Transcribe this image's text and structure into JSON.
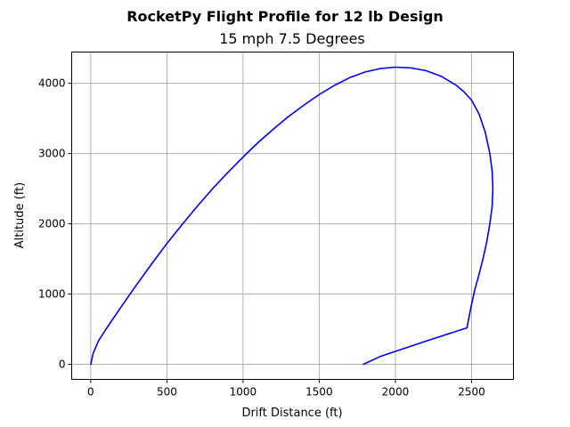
{
  "chart_data": {
    "type": "line",
    "title": "RocketPy Flight Profile for 12 lb Design",
    "subtitle": "15 mph 7.5 Degrees",
    "xlabel": "Drift Distance (ft)",
    "ylabel": "Altitude (ft)",
    "xlim": [
      -125,
      2775
    ],
    "ylim": [
      -215,
      4445
    ],
    "xticks": [
      0,
      500,
      1000,
      1500,
      2000,
      2500
    ],
    "yticks": [
      0,
      1000,
      2000,
      3000,
      4000
    ],
    "grid": true,
    "line_color": "#0000ee",
    "series": [
      {
        "x": [
          0,
          15,
          50,
          100,
          200,
          300,
          400,
          500,
          600,
          700,
          800,
          900,
          1000,
          1100,
          1200,
          1300,
          1400,
          1500,
          1600,
          1700,
          1800,
          1900,
          2000,
          2100,
          2200,
          2300,
          2400,
          2450,
          2500,
          2550,
          2590,
          2620,
          2635,
          2640,
          2635,
          2620,
          2600,
          2575,
          2545,
          2520,
          2505,
          2490,
          2470,
          2200,
          1900,
          1790
        ],
        "y": [
          0,
          150,
          330,
          500,
          820,
          1130,
          1430,
          1720,
          1990,
          2250,
          2500,
          2730,
          2950,
          3160,
          3350,
          3530,
          3690,
          3840,
          3970,
          4080,
          4160,
          4210,
          4230,
          4220,
          4180,
          4100,
          3970,
          3880,
          3760,
          3560,
          3300,
          3000,
          2750,
          2500,
          2250,
          2000,
          1750,
          1500,
          1250,
          1050,
          900,
          750,
          520,
          330,
          110,
          0
        ]
      }
    ]
  }
}
